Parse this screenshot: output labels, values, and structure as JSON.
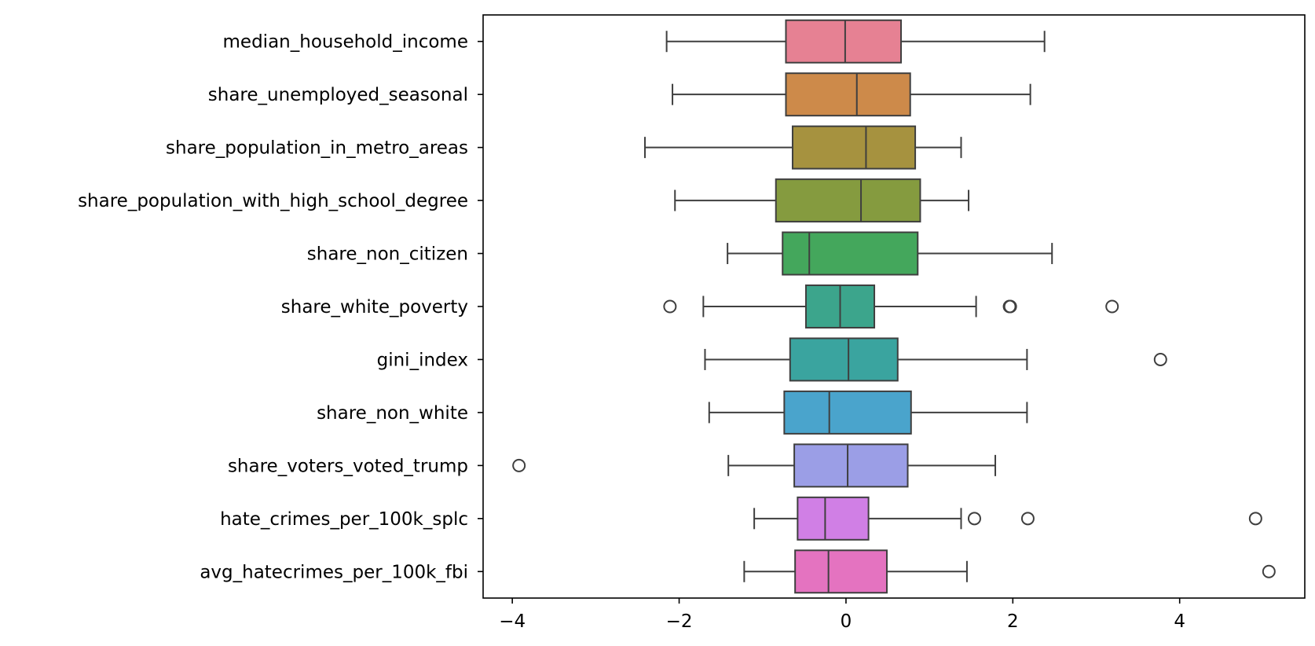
{
  "chart_data": {
    "type": "box",
    "orientation": "horizontal",
    "title": "",
    "xlabel": "",
    "ylabel": "",
    "xlim": [
      -4.35,
      5.5
    ],
    "x_ticks": [
      -4,
      -2,
      0,
      2,
      4
    ],
    "x_tick_labels": [
      "−4",
      "−2",
      "0",
      "2",
      "4"
    ],
    "grid": false,
    "legend": "none",
    "series": [
      {
        "category": "median_household_income",
        "whisker_low": -2.15,
        "q1": -0.72,
        "median": -0.01,
        "q3": 0.66,
        "whisker_high": 2.38,
        "outliers": [],
        "color": "#e68193"
      },
      {
        "category": "share_unemployed_seasonal",
        "whisker_low": -2.08,
        "q1": -0.72,
        "median": 0.13,
        "q3": 0.77,
        "whisker_high": 2.21,
        "outliers": [],
        "color": "#cd8a4a"
      },
      {
        "category": "share_population_in_metro_areas",
        "whisker_low": -2.41,
        "q1": -0.64,
        "median": 0.24,
        "q3": 0.83,
        "whisker_high": 1.38,
        "outliers": [],
        "color": "#a6923f"
      },
      {
        "category": "share_population_with_high_school_degree",
        "whisker_low": -2.05,
        "q1": -0.84,
        "median": 0.18,
        "q3": 0.89,
        "whisker_high": 1.47,
        "outliers": [],
        "color": "#859b3f"
      },
      {
        "category": "share_non_citizen",
        "whisker_low": -1.42,
        "q1": -0.76,
        "median": -0.44,
        "q3": 0.86,
        "whisker_high": 2.47,
        "outliers": [],
        "color": "#44a75c"
      },
      {
        "category": "share_white_poverty",
        "whisker_low": -1.71,
        "q1": -0.48,
        "median": -0.07,
        "q3": 0.34,
        "whisker_high": 1.56,
        "outliers": [
          -2.11,
          1.96,
          1.97,
          3.19
        ],
        "color": "#3ca58c"
      },
      {
        "category": "gini_index",
        "whisker_low": -1.69,
        "q1": -0.67,
        "median": 0.03,
        "q3": 0.62,
        "whisker_high": 2.17,
        "outliers": [
          3.77
        ],
        "color": "#3aa49f"
      },
      {
        "category": "share_non_white",
        "whisker_low": -1.64,
        "q1": -0.74,
        "median": -0.2,
        "q3": 0.78,
        "whisker_high": 2.17,
        "outliers": [],
        "color": "#4aa4cc"
      },
      {
        "category": "share_voters_voted_trump",
        "whisker_low": -1.41,
        "q1": -0.62,
        "median": 0.02,
        "q3": 0.74,
        "whisker_high": 1.79,
        "outliers": [
          -3.92
        ],
        "color": "#9b9ee6"
      },
      {
        "category": "hate_crimes_per_100k_splc",
        "whisker_low": -1.1,
        "q1": -0.58,
        "median": -0.25,
        "q3": 0.27,
        "whisker_high": 1.38,
        "outliers": [
          1.54,
          2.18,
          4.91
        ],
        "color": "#d07fe5"
      },
      {
        "category": "avg_hatecrimes_per_100k_fbi",
        "whisker_low": -1.22,
        "q1": -0.61,
        "median": -0.21,
        "q3": 0.49,
        "whisker_high": 1.45,
        "outliers": [
          5.07
        ],
        "color": "#e473c0"
      }
    ]
  }
}
